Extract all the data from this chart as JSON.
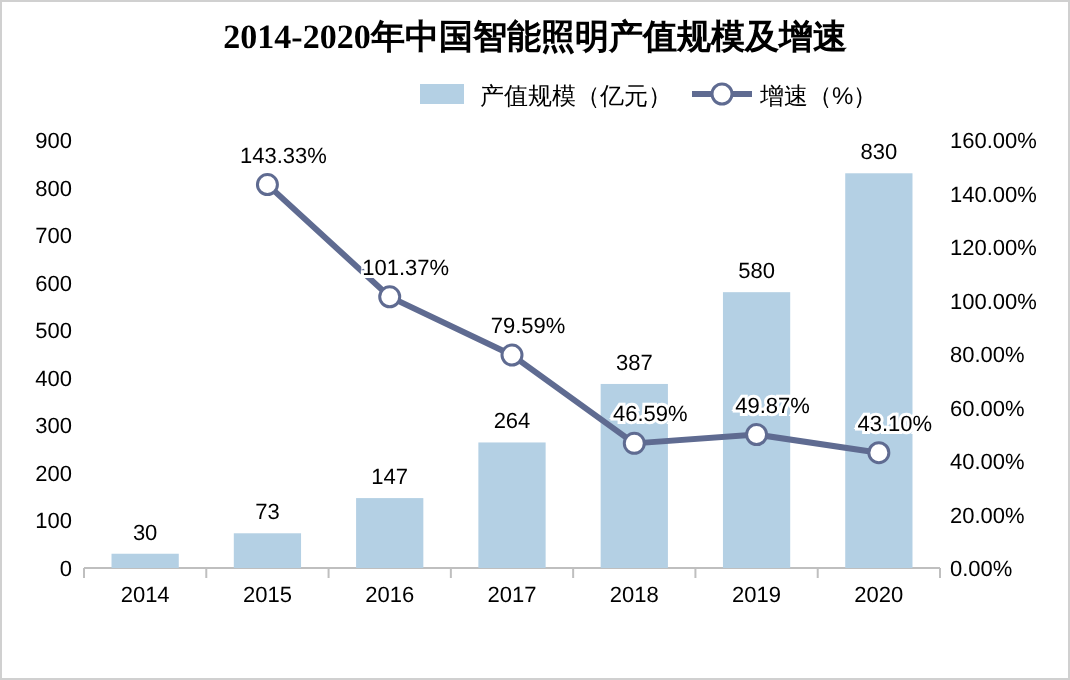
{
  "chart_data": {
    "type": "bar",
    "title": "2014-2020年中国智能照明产值规模及增速",
    "categories": [
      "2014",
      "2015",
      "2016",
      "2017",
      "2018",
      "2019",
      "2020"
    ],
    "series": [
      {
        "name": "产值规模（亿元）",
        "color": "#b4d0e4",
        "values": [
          30,
          73,
          147,
          264,
          387,
          580,
          830
        ],
        "value_labels": [
          "30",
          "73",
          "147",
          "264",
          "387",
          "580",
          "830"
        ]
      },
      {
        "name": "增速（%）",
        "type": "line",
        "axis": "y2",
        "color": "#5f6b91",
        "marker": "circle",
        "values": [
          null,
          143.33,
          101.37,
          79.59,
          46.59,
          49.87,
          43.1
        ],
        "value_labels": [
          null,
          "143.33%",
          "101.37%",
          "79.59%",
          "46.59%",
          "49.87%",
          "43.10%"
        ]
      }
    ],
    "ylim": [
      0,
      900
    ],
    "yticks": [
      0,
      100,
      200,
      300,
      400,
      500,
      600,
      700,
      800,
      900
    ],
    "y2lim": [
      0,
      160
    ],
    "y2ticks": [
      {
        "value": 0,
        "label": "0.00%"
      },
      {
        "value": 20,
        "label": "20.00%"
      },
      {
        "value": 40,
        "label": "40.00%"
      },
      {
        "value": 60,
        "label": "60.00%"
      },
      {
        "value": 80,
        "label": "80.00%"
      },
      {
        "value": 100,
        "label": "100.00%"
      },
      {
        "value": 120,
        "label": "120.00%"
      },
      {
        "value": 140,
        "label": "140.00%"
      },
      {
        "value": 160,
        "label": "160.00%"
      }
    ],
    "legend": "top right"
  }
}
